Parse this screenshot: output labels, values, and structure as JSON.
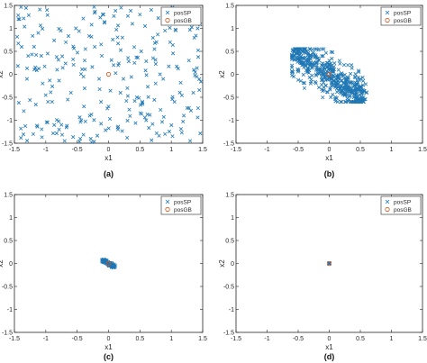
{
  "chart_data": [
    {
      "panel": "(a)",
      "type": "scatter",
      "xlabel": "x1",
      "ylabel": "x2",
      "xlim": [
        -1.5,
        1.5
      ],
      "ylim": [
        -1.5,
        1.5
      ],
      "xticks": [
        "-1.5",
        "-1",
        "-0.5",
        "0",
        "0.5",
        "1",
        "1.5"
      ],
      "yticks": [
        "-1.5",
        "-1",
        "-0.5",
        "0",
        "0.5",
        "1",
        "1.5"
      ],
      "legend": [
        "posSP",
        "posGB"
      ],
      "legend_placement": "top-right",
      "grid": false,
      "spread": "uniform over the full domain",
      "posGB": [
        0.0,
        0.0
      ],
      "series": [
        {
          "name": "posSP",
          "marker": "x",
          "color": "#1f77b4",
          "x": [
            -1.42,
            -1.35,
            -1.28,
            -1.2,
            -1.12,
            -1.05,
            -0.98,
            -0.9,
            -0.82,
            -0.75,
            -0.68,
            -0.6,
            -0.52,
            -0.45,
            -0.38,
            -0.3,
            -0.22,
            -0.15,
            -0.08,
            0.0,
            0.08,
            0.15,
            0.22,
            0.3,
            0.38,
            0.45,
            0.52,
            0.6,
            0.68,
            0.75,
            0.82,
            0.9,
            0.98,
            1.05,
            1.12,
            1.2,
            1.28,
            1.35,
            1.42,
            -1.3,
            -0.7,
            0.2,
            0.9,
            1.3,
            -0.4,
            0.5
          ],
          "y": [
            1.2,
            -0.8,
            0.4,
            -1.3,
            0.9,
            -0.2,
            1.4,
            -0.6,
            0.1,
            -1.1,
            0.7,
            -0.4,
            1.0,
            -1.4,
            0.3,
            -0.9,
            0.6,
            -0.1,
            1.3,
            -0.7,
            0.2,
            -1.2,
            0.8,
            -0.3,
            1.1,
            -0.5,
            0.5,
            -1.0,
            1.4,
            -0.2,
            0.0,
            -1.3,
            0.7,
            -0.6,
            1.2,
            -0.9,
            0.3,
            -0.4,
            1.0,
            -0.1,
            -1.45,
            1.45,
            0.95,
            -1.45,
            -0.05,
            1.3
          ]
        }
      ]
    },
    {
      "panel": "(b)",
      "type": "scatter",
      "xlabel": "x1",
      "ylabel": "x2",
      "xlim": [
        -1.5,
        1.5
      ],
      "ylim": [
        -1.5,
        1.5
      ],
      "xticks": [
        "-1.5",
        "-1",
        "-0.5",
        "0",
        "0.5",
        "1",
        "1.5"
      ],
      "yticks": [
        "-1.5",
        "-1",
        "-0.5",
        "0",
        "0.5",
        "1",
        "1.5"
      ],
      "legend": [
        "posSP",
        "posGB"
      ],
      "legend_placement": "top-right",
      "grid": false,
      "spread": "x in [-0.6, 0.6], y in [-0.6, 0.55], clustered along the line y = -x",
      "posGB": [
        0.0,
        0.0
      ],
      "series": [
        {
          "name": "posSP",
          "marker": "x",
          "color": "#1f77b4",
          "x": [
            -0.55,
            -0.5,
            -0.45,
            -0.4,
            -0.35,
            -0.3,
            -0.25,
            -0.2,
            -0.15,
            -0.1,
            -0.05,
            0.0,
            0.05,
            0.1,
            0.15,
            0.2,
            0.25,
            0.3,
            0.35,
            0.4,
            0.45,
            0.5,
            0.55,
            -0.5,
            -0.3,
            -0.1,
            0.1,
            0.3,
            0.5,
            -0.4,
            0.0,
            0.4
          ],
          "y": [
            0.5,
            0.45,
            0.4,
            0.35,
            0.3,
            0.25,
            0.2,
            0.15,
            0.1,
            0.05,
            0.0,
            -0.05,
            -0.1,
            -0.15,
            -0.2,
            -0.25,
            -0.3,
            -0.35,
            -0.4,
            -0.45,
            -0.5,
            -0.52,
            -0.55,
            0.1,
            -0.2,
            0.4,
            -0.5,
            0.2,
            -0.1,
            -0.3,
            0.3,
            -0.6
          ]
        }
      ]
    },
    {
      "panel": "(c)",
      "type": "scatter",
      "xlabel": "x1",
      "ylabel": "x2",
      "xlim": [
        -1.5,
        1.5
      ],
      "ylim": [
        -1.5,
        1.5
      ],
      "xticks": [
        "-1.5",
        "-1",
        "-0.5",
        "0",
        "0.5",
        "1",
        "1.5"
      ],
      "yticks": [
        "-1.5",
        "-1",
        "-0.5",
        "0",
        "0.5",
        "1",
        "1.5"
      ],
      "legend": [
        "posSP",
        "posGB"
      ],
      "legend_placement": "top-right",
      "grid": false,
      "spread": "tight cluster around the origin, x in [-0.1, 0.1], y in [-0.1, 0.1]",
      "posGB": [
        0.0,
        0.0
      ],
      "series": [
        {
          "name": "posSP",
          "marker": "x",
          "color": "#1f77b4",
          "x": [
            -0.1,
            -0.08,
            -0.06,
            -0.04,
            -0.02,
            0.0,
            0.02,
            0.04,
            0.06,
            0.08,
            0.1,
            -0.07,
            -0.03,
            0.01,
            0.05,
            0.09
          ],
          "y": [
            0.08,
            0.06,
            0.05,
            0.03,
            0.02,
            0.0,
            -0.02,
            -0.03,
            -0.05,
            -0.06,
            -0.08,
            0.02,
            0.07,
            -0.05,
            0.01,
            -0.02
          ]
        }
      ]
    },
    {
      "panel": "(d)",
      "type": "scatter",
      "xlabel": "x1",
      "ylabel": "x2",
      "xlim": [
        -1.5,
        1.5
      ],
      "ylim": [
        -1.5,
        1.5
      ],
      "xticks": [
        "-1.5",
        "-1",
        "-0.5",
        "0",
        "0.5",
        "1",
        "1.5"
      ],
      "yticks": [
        "-1.5",
        "-1",
        "-0.5",
        "0",
        "0.5",
        "1",
        "1.5"
      ],
      "legend": [
        "posSP",
        "posGB"
      ],
      "legend_placement": "top-right",
      "grid": false,
      "spread": "all particles converged at the origin",
      "posGB": [
        0.0,
        0.0
      ],
      "series": [
        {
          "name": "posSP",
          "marker": "x",
          "color": "#1f77b4",
          "x": [
            0.0,
            0.005,
            -0.005,
            0.0
          ],
          "y": [
            0.0,
            0.005,
            -0.005,
            0.004
          ]
        }
      ]
    }
  ]
}
